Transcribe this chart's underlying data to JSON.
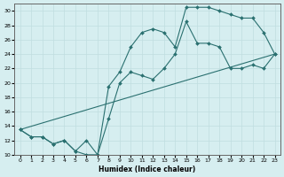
{
  "xlabel": "Humidex (Indice chaleur)",
  "bg_color": "#d6eef0",
  "grid_color": "#c0dde0",
  "line_color": "#2a7070",
  "xlim": [
    -0.5,
    23.5
  ],
  "ylim": [
    10,
    31
  ],
  "xticks": [
    0,
    1,
    2,
    3,
    4,
    5,
    6,
    7,
    8,
    9,
    10,
    11,
    12,
    13,
    14,
    15,
    16,
    17,
    18,
    19,
    20,
    21,
    22,
    23
  ],
  "yticks": [
    10,
    12,
    14,
    16,
    18,
    20,
    22,
    24,
    26,
    28,
    30
  ],
  "line1_x": [
    0,
    1,
    2,
    3,
    4,
    5,
    6,
    7,
    8,
    9,
    10,
    11,
    12,
    13,
    14,
    15,
    16,
    17,
    18,
    19,
    20,
    21,
    22,
    23
  ],
  "line1_y": [
    13.5,
    12.5,
    12.5,
    11.5,
    12.0,
    10.5,
    10.0,
    10.0,
    19.5,
    21.5,
    25.0,
    27.0,
    27.5,
    27.0,
    25.0,
    30.5,
    30.5,
    30.5,
    30.0,
    29.5,
    29.0,
    29.0,
    27.0,
    24.0
  ],
  "line2_x": [
    0,
    1,
    2,
    3,
    4,
    5,
    6,
    7,
    8,
    9,
    10,
    11,
    12,
    13,
    14,
    15,
    16,
    17,
    18,
    19,
    20,
    21,
    22,
    23
  ],
  "line2_y": [
    13.5,
    12.5,
    12.5,
    11.5,
    12.0,
    10.5,
    12.0,
    10.0,
    15.0,
    20.0,
    21.5,
    21.0,
    20.5,
    22.0,
    24.0,
    28.5,
    25.5,
    25.5,
    25.0,
    22.0,
    22.0,
    22.5,
    22.0,
    24.0
  ],
  "line3_x": [
    0,
    23
  ],
  "line3_y": [
    13.5,
    24.0
  ]
}
